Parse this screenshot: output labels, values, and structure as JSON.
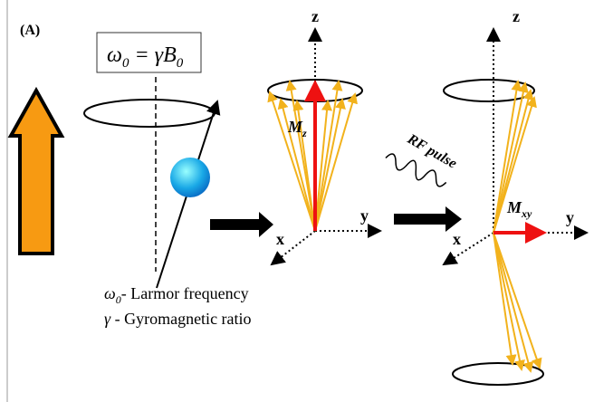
{
  "panel_label": "(A)",
  "equation": {
    "lhs": "ω",
    "lhs_sub": "0",
    "rhs": " = γB",
    "rhs_sub": "0"
  },
  "legend": [
    {
      "symbol": "ω",
      "symbol_sub": "0",
      "text": "- Larmor frequency"
    },
    {
      "symbol": "γ",
      "text": " - Gyromagnetic ratio"
    }
  ],
  "frame1": {
    "z": "z",
    "y": "y",
    "x": "x",
    "vector": "M",
    "vector_sub": "z"
  },
  "pulse_label": "RF pulse",
  "frame2": {
    "z": "z",
    "y": "y",
    "x": "x",
    "vector": "M",
    "vector_sub": "xy"
  }
}
